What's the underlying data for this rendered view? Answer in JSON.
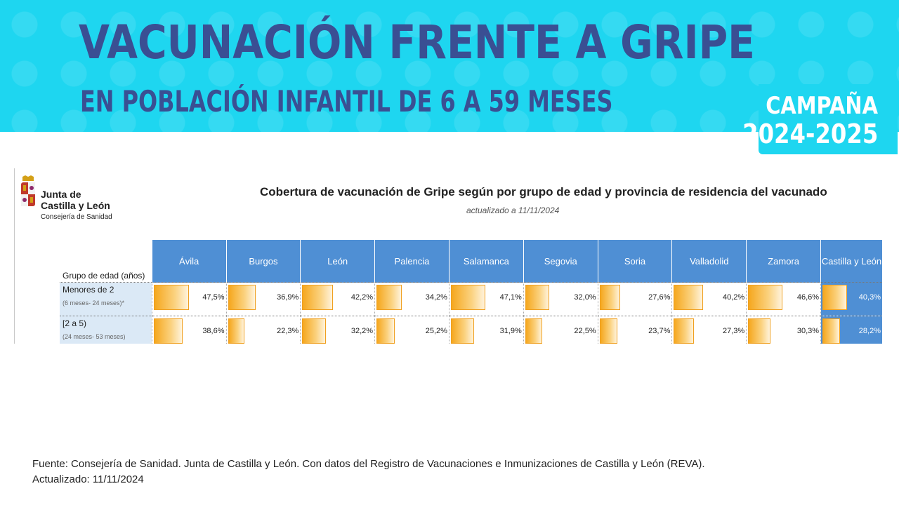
{
  "banner": {
    "title": "VACUNACIÓN FRENTE A GRIPE",
    "subtitle": "EN POBLACIÓN INFANTIL DE 6 A 59 MESES",
    "campaign_label": "CAMPAÑA",
    "campaign_years": "2024-2025",
    "background_color": "#1ed6f0",
    "title_color": "#3a4f93"
  },
  "logo": {
    "line1": "Junta de",
    "line2": "Castilla y León",
    "line3": "Consejería de Sanidad",
    "icon": "coat-of-arms-icon"
  },
  "report": {
    "title": "Cobertura de vacunación de Gripe según por grupo de edad y provincia de residencia del vacunado",
    "updated": "actualizado a    11/11/2024",
    "group_header": "Grupo de edad (años)",
    "header_color": "#4f8fd4",
    "bar_color": "#f5a71e",
    "columns": [
      "Ávila",
      "Burgos",
      "León",
      "Palencia",
      "Salamanca",
      "Segovia",
      "Soria",
      "Valladolid",
      "Zamora",
      "Castilla y León"
    ],
    "rows": [
      {
        "label": "Menores de 2",
        "sublabel": "(6 meses- 24 meses)*",
        "values": [
          47.5,
          36.9,
          42.2,
          34.2,
          47.1,
          32.0,
          27.6,
          40.2,
          46.6,
          40.3
        ],
        "labels": [
          "47,5%",
          "36,9%",
          "42,2%",
          "34,2%",
          "47,1%",
          "32,0%",
          "27,6%",
          "40,2%",
          "46,6%",
          "40,3%"
        ]
      },
      {
        "label": "[2 a 5)",
        "sublabel": "(24 meses- 53 meses)",
        "values": [
          38.6,
          22.3,
          32.2,
          25.2,
          31.9,
          22.5,
          23.7,
          27.3,
          30.3,
          28.2
        ],
        "labels": [
          "38,6%",
          "22,3%",
          "32,2%",
          "25,2%",
          "31,9%",
          "22,5%",
          "23,7%",
          "27,3%",
          "30,3%",
          "28,2%"
        ]
      }
    ]
  },
  "footer": {
    "source": "Fuente: Consejería de Sanidad. Junta de Castilla y León. Con datos del Registro de Vacunaciones e Inmunizaciones  de Castilla y León (REVA).",
    "updated": "Actualizado: 11/11/2024"
  }
}
